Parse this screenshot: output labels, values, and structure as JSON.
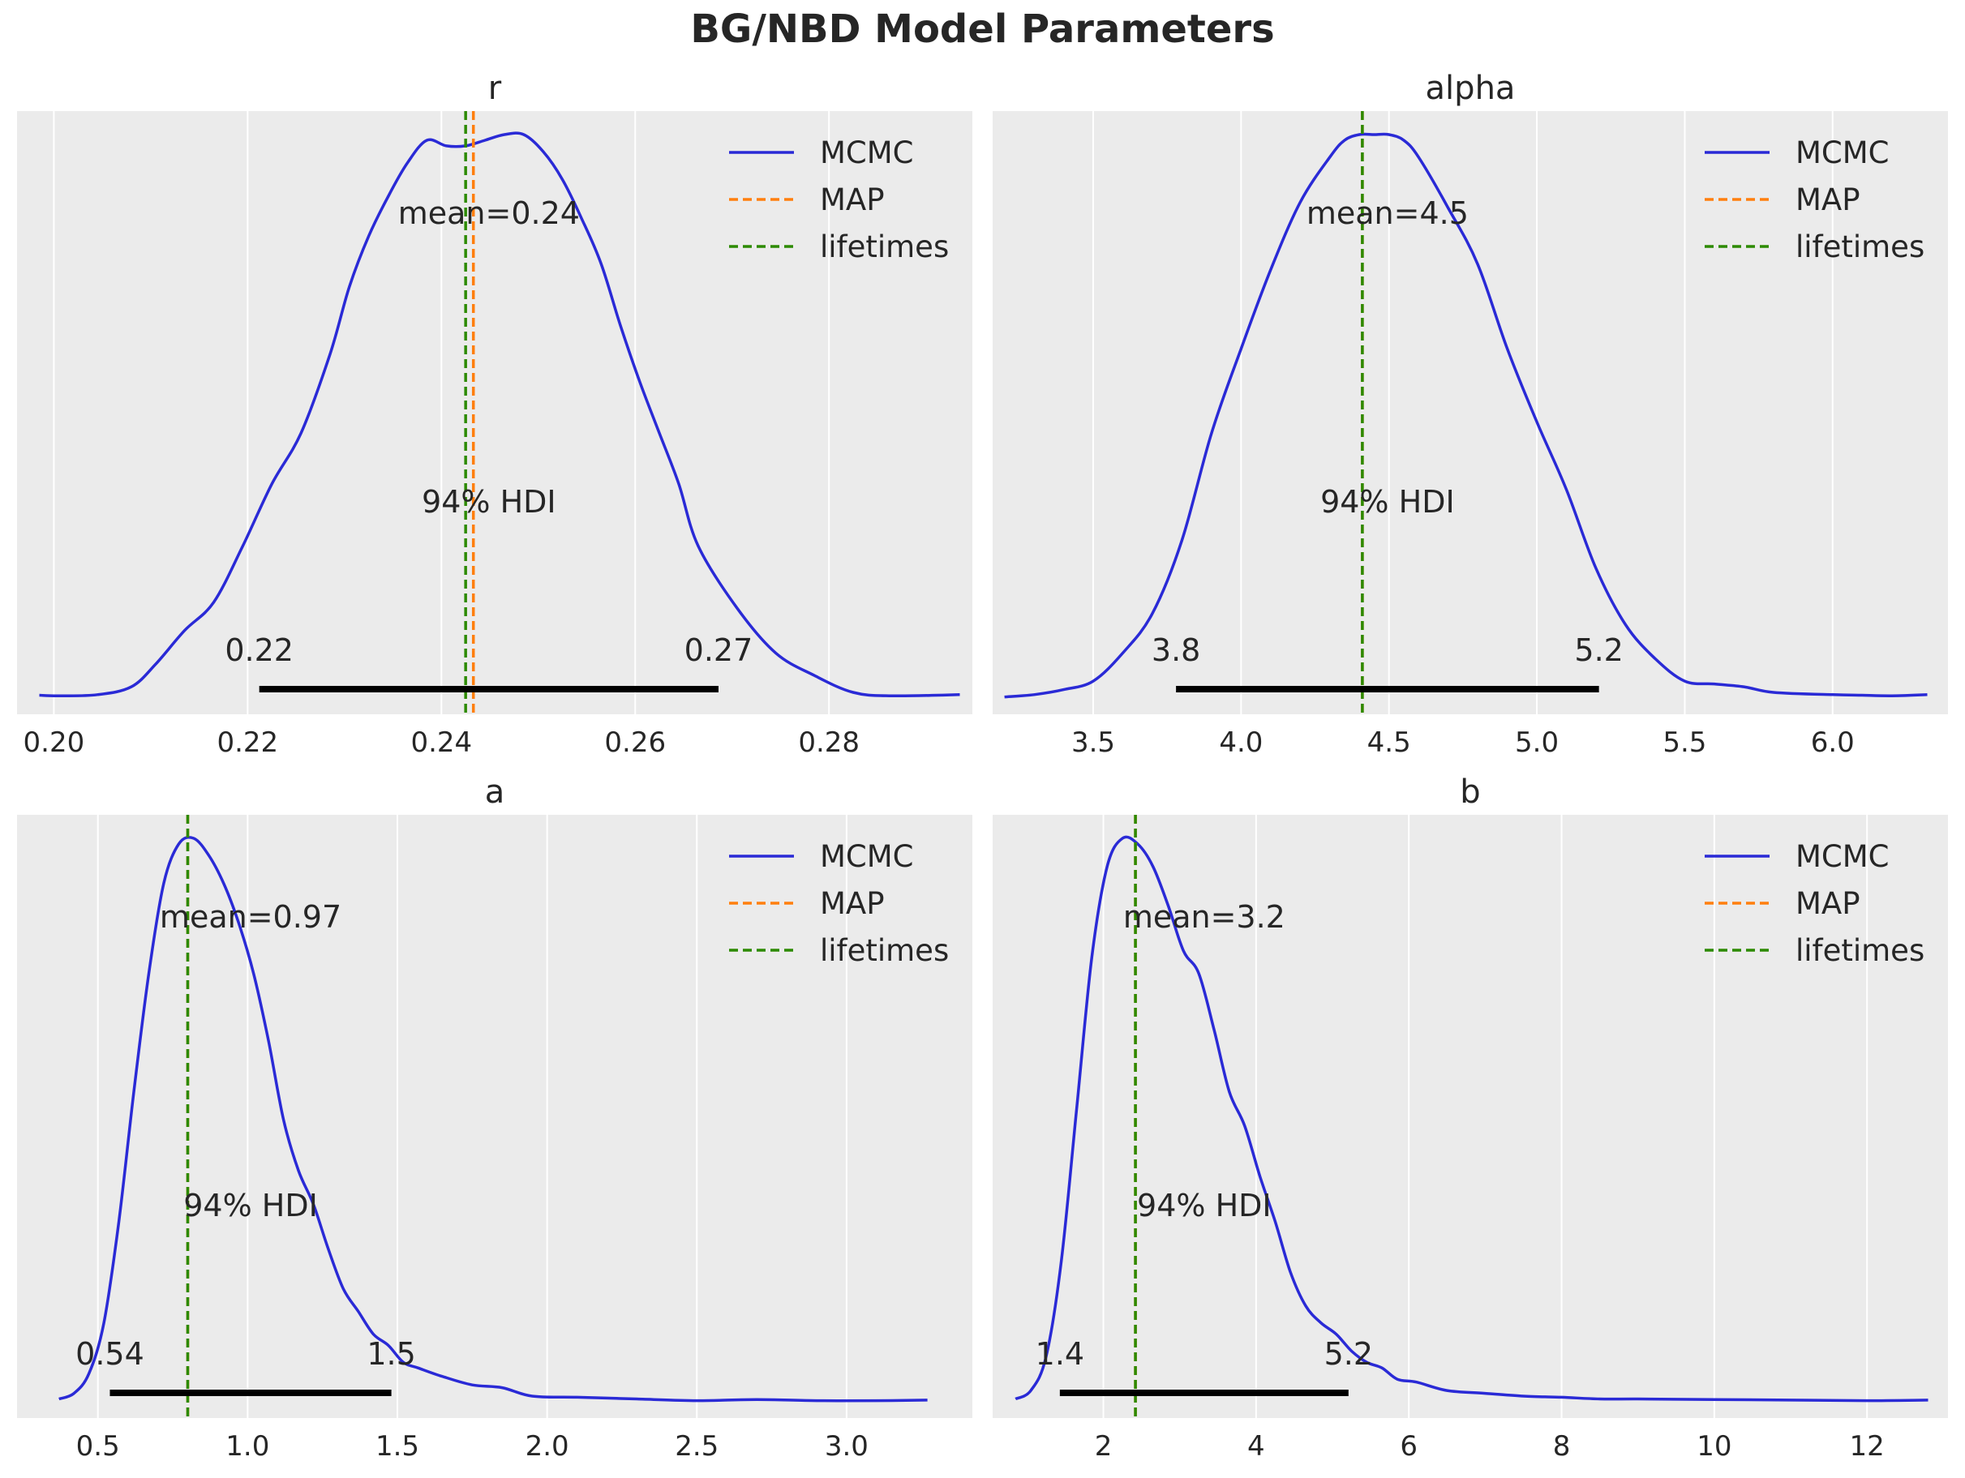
{
  "suptitle": "BG/NBD Model Parameters",
  "colors": {
    "background": "#ebebeb",
    "grid": "#ffffff",
    "mcmc": "#2a2ad6",
    "map": "#ff7f0e",
    "lifetimes": "#2c8a00",
    "hdi": "#000000",
    "text": "#262626"
  },
  "legend_labels": [
    "MCMC",
    "MAP",
    "lifetimes"
  ],
  "chart_data": [
    {
      "type": "line",
      "title": "r",
      "xlim": [
        0.1962,
        0.2948
      ],
      "xticks": [
        0.2,
        0.22,
        0.24,
        0.26,
        0.28
      ],
      "xtick_labels": [
        "0.20",
        "0.22",
        "0.24",
        "0.26",
        "0.28"
      ],
      "grid": true,
      "legend": "top-right",
      "mean_label": "mean=0.24",
      "hdi_label": "94% HDI",
      "hdi": [
        0.2212,
        0.2686
      ],
      "hdi_labels": [
        "0.22",
        "0.27"
      ],
      "map": 0.2433,
      "lifetimes": 0.2425,
      "series": [
        {
          "name": "MCMC",
          "x": [
            0.1985,
            0.2005,
            0.2045,
            0.208,
            0.2105,
            0.2135,
            0.2165,
            0.2195,
            0.2225,
            0.2255,
            0.2285,
            0.2305,
            0.2325,
            0.2345,
            0.2365,
            0.2385,
            0.2405,
            0.2425,
            0.2445,
            0.2465,
            0.2485,
            0.2505,
            0.2525,
            0.2545,
            0.2565,
            0.2585,
            0.2605,
            0.2625,
            0.2645,
            0.2665,
            0.2705,
            0.2745,
            0.2785,
            0.2825,
            0.2865,
            0.2935
          ],
          "y": [
            0.005,
            0.004,
            0.006,
            0.02,
            0.06,
            0.12,
            0.17,
            0.27,
            0.38,
            0.47,
            0.61,
            0.73,
            0.82,
            0.89,
            0.95,
            0.99,
            0.98,
            0.98,
            0.99,
            1.0,
            1.0,
            0.97,
            0.92,
            0.85,
            0.77,
            0.66,
            0.56,
            0.47,
            0.38,
            0.27,
            0.16,
            0.08,
            0.04,
            0.01,
            0.004,
            0.006
          ]
        }
      ]
    },
    {
      "type": "line",
      "title": "alpha",
      "xlim": [
        3.16,
        6.39
      ],
      "xticks": [
        3.5,
        4.0,
        4.5,
        5.0,
        5.5,
        6.0
      ],
      "xtick_labels": [
        "3.5",
        "4.0",
        "4.5",
        "5.0",
        "5.5",
        "6.0"
      ],
      "grid": true,
      "legend": "top-right",
      "mean_label": "mean=4.5",
      "hdi_label": "94% HDI",
      "hdi": [
        3.78,
        5.21
      ],
      "hdi_labels": [
        "3.8",
        "5.2"
      ],
      "map": 4.41,
      "lifetimes": 4.41,
      "series": [
        {
          "name": "MCMC",
          "x": [
            3.2,
            3.3,
            3.4,
            3.5,
            3.6,
            3.7,
            3.8,
            3.9,
            4.0,
            4.1,
            4.2,
            4.3,
            4.35,
            4.4,
            4.45,
            4.5,
            4.55,
            4.6,
            4.7,
            4.8,
            4.9,
            5.0,
            5.1,
            5.2,
            5.3,
            5.4,
            5.5,
            5.6,
            5.7,
            5.8,
            6.0,
            6.1,
            6.2,
            6.32
          ],
          "y": [
            0.002,
            0.006,
            0.015,
            0.03,
            0.08,
            0.15,
            0.28,
            0.47,
            0.62,
            0.76,
            0.88,
            0.96,
            0.99,
            1.0,
            1.0,
            1.0,
            0.99,
            0.96,
            0.87,
            0.77,
            0.62,
            0.49,
            0.37,
            0.23,
            0.13,
            0.07,
            0.03,
            0.025,
            0.02,
            0.01,
            0.006,
            0.005,
            0.004,
            0.006
          ]
        }
      ]
    },
    {
      "type": "line",
      "title": "a",
      "xlim": [
        0.23,
        3.42
      ],
      "xticks": [
        0.5,
        1.0,
        1.5,
        2.0,
        2.5,
        3.0
      ],
      "xtick_labels": [
        "0.5",
        "1.0",
        "1.5",
        "2.0",
        "2.5",
        "3.0"
      ],
      "grid": true,
      "legend": "top-right",
      "mean_label": "mean=0.97",
      "hdi_label": "94% HDI",
      "hdi": [
        0.54,
        1.48
      ],
      "hdi_labels": [
        "0.54",
        "1.5"
      ],
      "map": 0.8,
      "lifetimes": 0.8,
      "series": [
        {
          "name": "MCMC",
          "x": [
            0.37,
            0.42,
            0.47,
            0.52,
            0.57,
            0.62,
            0.67,
            0.72,
            0.77,
            0.82,
            0.87,
            0.92,
            0.97,
            1.02,
            1.07,
            1.12,
            1.17,
            1.22,
            1.27,
            1.32,
            1.37,
            1.42,
            1.47,
            1.52,
            1.57,
            1.65,
            1.75,
            1.85,
            1.95,
            2.1,
            2.3,
            2.5,
            2.7,
            2.9,
            3.1,
            3.27
          ],
          "y": [
            0.005,
            0.015,
            0.05,
            0.14,
            0.32,
            0.55,
            0.76,
            0.92,
            0.99,
            1.0,
            0.97,
            0.92,
            0.85,
            0.76,
            0.64,
            0.5,
            0.41,
            0.35,
            0.27,
            0.2,
            0.16,
            0.12,
            0.1,
            0.07,
            0.06,
            0.045,
            0.03,
            0.025,
            0.01,
            0.008,
            0.005,
            0.002,
            0.004,
            0.002,
            0.002,
            0.003
          ]
        }
      ]
    },
    {
      "type": "line",
      "title": "b",
      "xlim": [
        0.55,
        13.06
      ],
      "xticks": [
        2,
        4,
        6,
        8,
        10,
        12
      ],
      "xtick_labels": [
        "2",
        "4",
        "6",
        "8",
        "10",
        "12"
      ],
      "grid": true,
      "legend": "top-right",
      "mean_label": "mean=3.2",
      "hdi_label": "94% HDI",
      "hdi": [
        1.43,
        5.21
      ],
      "hdi_labels": [
        "1.4",
        "5.2"
      ],
      "map": 2.42,
      "lifetimes": 2.42,
      "series": [
        {
          "name": "MCMC",
          "x": [
            0.85,
            1.05,
            1.25,
            1.45,
            1.65,
            1.85,
            2.05,
            2.25,
            2.45,
            2.65,
            2.85,
            3.05,
            3.25,
            3.45,
            3.65,
            3.85,
            4.05,
            4.25,
            4.45,
            4.65,
            4.85,
            5.05,
            5.25,
            5.45,
            5.65,
            5.85,
            6.1,
            6.5,
            7.0,
            7.5,
            8.0,
            8.5,
            9.0,
            10.0,
            11.0,
            12.0,
            12.8
          ],
          "y": [
            0.005,
            0.02,
            0.08,
            0.25,
            0.52,
            0.79,
            0.95,
            1.0,
            0.99,
            0.95,
            0.88,
            0.8,
            0.76,
            0.66,
            0.55,
            0.49,
            0.4,
            0.32,
            0.23,
            0.17,
            0.14,
            0.12,
            0.09,
            0.07,
            0.06,
            0.04,
            0.035,
            0.02,
            0.015,
            0.01,
            0.008,
            0.005,
            0.005,
            0.004,
            0.003,
            0.002,
            0.003
          ]
        }
      ]
    }
  ]
}
